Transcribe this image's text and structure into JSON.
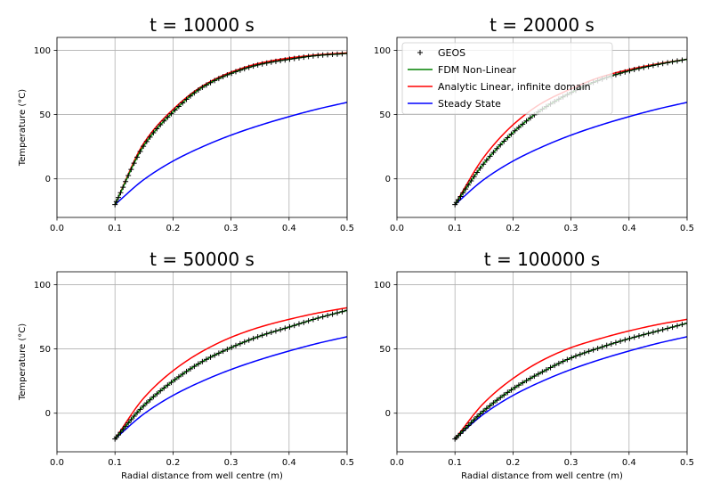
{
  "figure": {
    "shared_xlabel": "Radial distance from well centre (m)",
    "shared_ylabel": "Temperature (°C)"
  },
  "legend": {
    "entries": [
      {
        "name": "GEOS",
        "color": "#000000",
        "marker": "+"
      },
      {
        "name": "FDM Non-Linear",
        "color": "#008000",
        "marker": "line"
      },
      {
        "name": "Analytic Linear, infinite domain",
        "color": "#ff0000",
        "marker": "line"
      },
      {
        "name": "Steady State",
        "color": "#0000ff",
        "marker": "line"
      }
    ],
    "placement": "upper-left of top-right panel"
  },
  "chart_data": [
    {
      "type": "line",
      "title": "t = 10000 s",
      "xlabel": "",
      "ylabel": "Temperature (°C)",
      "xlim": [
        0.0,
        0.5
      ],
      "ylim": [
        -30,
        110
      ],
      "xticks": [
        "0.0",
        "0.1",
        "0.2",
        "0.3",
        "0.4",
        "0.5"
      ],
      "yticks": [
        "0",
        "50",
        "100"
      ],
      "grid": true,
      "series": [
        {
          "name": "GEOS",
          "color": "#000000",
          "x": [
            0.1,
            0.15,
            0.2,
            0.25,
            0.3,
            0.35,
            0.4,
            0.45,
            0.5
          ],
          "values": [
            -20,
            26,
            52,
            71,
            82,
            89,
            93,
            96,
            97.5
          ]
        },
        {
          "name": "FDM Non-Linear",
          "color": "#008000",
          "x": [
            0.1,
            0.15,
            0.2,
            0.25,
            0.3,
            0.35,
            0.4,
            0.45,
            0.5
          ],
          "values": [
            -20,
            26,
            52,
            71,
            82,
            89,
            93,
            96,
            97.5
          ]
        },
        {
          "name": "Analytic Linear, infinite domain",
          "color": "#ff0000",
          "x": [
            0.1,
            0.15,
            0.2,
            0.25,
            0.3,
            0.35,
            0.4,
            0.45,
            0.5
          ],
          "values": [
            -20,
            28,
            54,
            72,
            83,
            90,
            94,
            96.5,
            98
          ]
        },
        {
          "name": "Steady State",
          "color": "#0000ff",
          "x": [
            0.1,
            0.15,
            0.2,
            0.25,
            0.3,
            0.35,
            0.4,
            0.45,
            0.5
          ],
          "values": [
            -20,
            -0.5,
            13.8,
            24.8,
            34.0,
            41.7,
            48.4,
            54.4,
            59.5
          ]
        }
      ]
    },
    {
      "type": "line",
      "title": "t = 20000 s",
      "xlabel": "",
      "ylabel": "",
      "xlim": [
        0.0,
        0.5
      ],
      "ylim": [
        -30,
        110
      ],
      "xticks": [
        "0.0",
        "0.1",
        "0.2",
        "0.3",
        "0.4",
        "0.5"
      ],
      "yticks": [
        "0",
        "50",
        "100"
      ],
      "grid": true,
      "series": [
        {
          "name": "GEOS",
          "color": "#000000",
          "x": [
            0.1,
            0.15,
            0.2,
            0.25,
            0.3,
            0.35,
            0.4,
            0.45,
            0.5
          ],
          "values": [
            -20,
            12,
            36,
            54,
            67,
            77,
            84,
            89,
            93
          ]
        },
        {
          "name": "FDM Non-Linear",
          "color": "#008000",
          "x": [
            0.1,
            0.15,
            0.2,
            0.25,
            0.3,
            0.35,
            0.4,
            0.45,
            0.5
          ],
          "values": [
            -20,
            12,
            36,
            54,
            67,
            77,
            84,
            89,
            93
          ]
        },
        {
          "name": "Analytic Linear, infinite domain",
          "color": "#ff0000",
          "x": [
            0.1,
            0.15,
            0.2,
            0.25,
            0.3,
            0.35,
            0.4,
            0.45,
            0.5
          ],
          "values": [
            -20,
            17,
            42,
            59,
            70,
            79,
            85,
            89.5,
            93
          ]
        },
        {
          "name": "Steady State",
          "color": "#0000ff",
          "x": [
            0.1,
            0.15,
            0.2,
            0.25,
            0.3,
            0.35,
            0.4,
            0.45,
            0.5
          ],
          "values": [
            -20,
            -0.5,
            13.8,
            24.8,
            34.0,
            41.7,
            48.4,
            54.4,
            59.5
          ]
        }
      ]
    },
    {
      "type": "line",
      "title": "t = 50000 s",
      "xlabel": "Radial distance from well centre (m)",
      "ylabel": "Temperature (°C)",
      "xlim": [
        0.0,
        0.5
      ],
      "ylim": [
        -30,
        110
      ],
      "xticks": [
        "0.0",
        "0.1",
        "0.2",
        "0.3",
        "0.4",
        "0.5"
      ],
      "yticks": [
        "0",
        "50",
        "100"
      ],
      "grid": true,
      "series": [
        {
          "name": "GEOS",
          "color": "#000000",
          "x": [
            0.1,
            0.15,
            0.2,
            0.25,
            0.3,
            0.35,
            0.4,
            0.45,
            0.5
          ],
          "values": [
            -20,
            6,
            25,
            40,
            51,
            60,
            67,
            74,
            80
          ]
        },
        {
          "name": "FDM Non-Linear",
          "color": "#008000",
          "x": [
            0.1,
            0.15,
            0.2,
            0.25,
            0.3,
            0.35,
            0.4,
            0.45,
            0.5
          ],
          "values": [
            -20,
            6,
            25,
            40,
            51,
            60,
            67,
            74,
            80
          ]
        },
        {
          "name": "Analytic Linear, infinite domain",
          "color": "#ff0000",
          "x": [
            0.1,
            0.15,
            0.2,
            0.25,
            0.3,
            0.35,
            0.4,
            0.45,
            0.5
          ],
          "values": [
            -20,
            12,
            33,
            48,
            59,
            67,
            73,
            78,
            82
          ]
        },
        {
          "name": "Steady State",
          "color": "#0000ff",
          "x": [
            0.1,
            0.15,
            0.2,
            0.25,
            0.3,
            0.35,
            0.4,
            0.45,
            0.5
          ],
          "values": [
            -20,
            -0.5,
            13.8,
            24.8,
            34.0,
            41.7,
            48.4,
            54.4,
            59.5
          ]
        }
      ]
    },
    {
      "type": "line",
      "title": "t = 100000 s",
      "xlabel": "Radial distance from well centre (m)",
      "ylabel": "",
      "xlim": [
        0.0,
        0.5
      ],
      "ylim": [
        -30,
        110
      ],
      "xticks": [
        "0.0",
        "0.1",
        "0.2",
        "0.3",
        "0.4",
        "0.5"
      ],
      "yticks": [
        "0",
        "50",
        "100"
      ],
      "grid": true,
      "series": [
        {
          "name": "GEOS",
          "color": "#000000",
          "x": [
            0.1,
            0.15,
            0.2,
            0.25,
            0.3,
            0.35,
            0.4,
            0.45,
            0.5
          ],
          "values": [
            -20,
            2,
            19,
            32,
            43,
            51,
            58,
            64,
            70
          ]
        },
        {
          "name": "FDM Non-Linear",
          "color": "#008000",
          "x": [
            0.1,
            0.15,
            0.2,
            0.25,
            0.3,
            0.35,
            0.4,
            0.45,
            0.5
          ],
          "values": [
            -20,
            2,
            19,
            32,
            43,
            51,
            58,
            64,
            70
          ]
        },
        {
          "name": "Analytic Linear, infinite domain",
          "color": "#ff0000",
          "x": [
            0.1,
            0.15,
            0.2,
            0.25,
            0.3,
            0.35,
            0.4,
            0.45,
            0.5
          ],
          "values": [
            -20,
            8,
            27,
            41,
            51,
            58,
            64,
            69,
            73
          ]
        },
        {
          "name": "Steady State",
          "color": "#0000ff",
          "x": [
            0.1,
            0.15,
            0.2,
            0.25,
            0.3,
            0.35,
            0.4,
            0.45,
            0.5
          ],
          "values": [
            -20,
            -0.5,
            13.8,
            24.8,
            34.0,
            41.7,
            48.4,
            54.4,
            59.5
          ]
        }
      ]
    }
  ]
}
